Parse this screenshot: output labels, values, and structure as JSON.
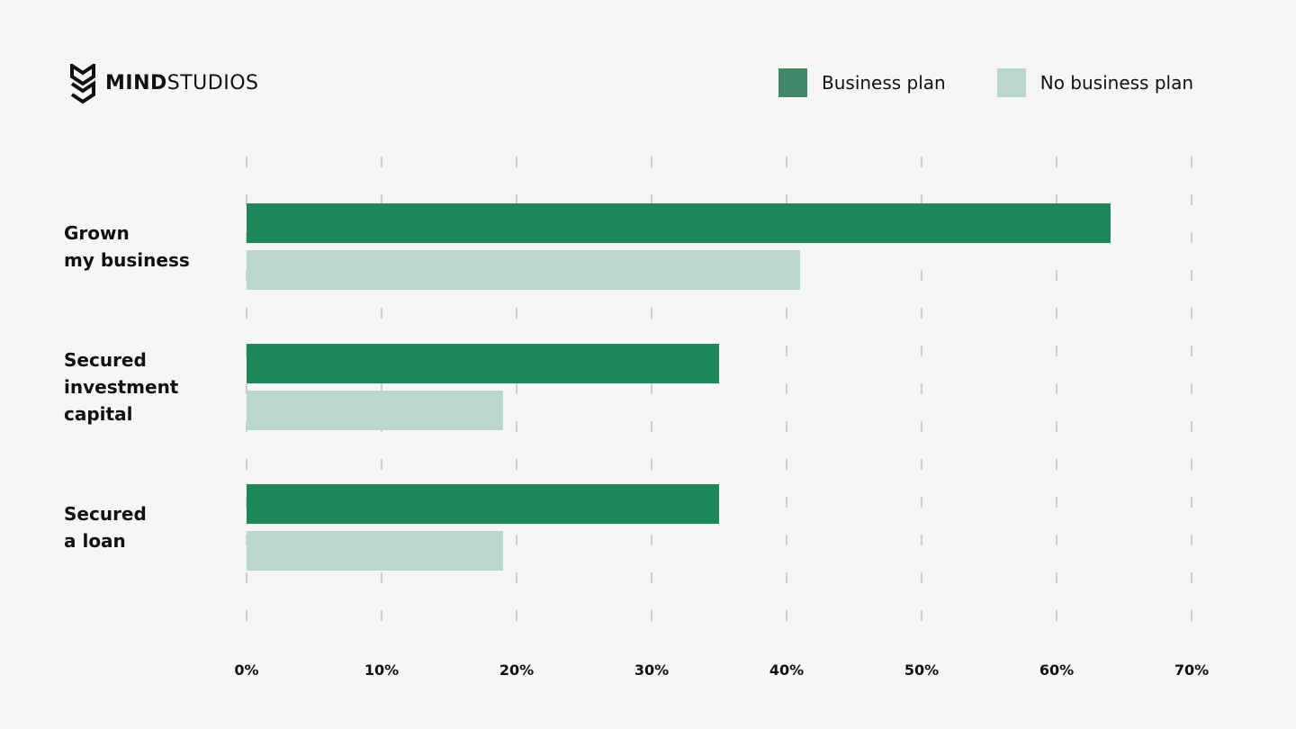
{
  "brand": {
    "name_bold": "MIND",
    "name_regular": "STUDIOS"
  },
  "legend": [
    {
      "label": "Business plan",
      "color": "#3f886a"
    },
    {
      "label": "No business plan",
      "color": "#bad8cd"
    }
  ],
  "chart_data": {
    "type": "bar",
    "orientation": "horizontal",
    "categories": [
      [
        "Grown",
        "my business"
      ],
      [
        "Secured",
        "investment",
        "capital"
      ],
      [
        "Secured",
        "a loan"
      ]
    ],
    "series": [
      {
        "name": "Business plan",
        "values": [
          64,
          35,
          35
        ],
        "color": "#1e875c"
      },
      {
        "name": "No business plan",
        "values": [
          41,
          19,
          19
        ],
        "color": "#bad8cd"
      }
    ],
    "xticks": [
      "0%",
      "10%",
      "20%",
      "30%",
      "40%",
      "50%",
      "60%",
      "70%"
    ],
    "xlim": [
      0,
      70
    ],
    "grid": true,
    "legend_position": "top-right"
  }
}
